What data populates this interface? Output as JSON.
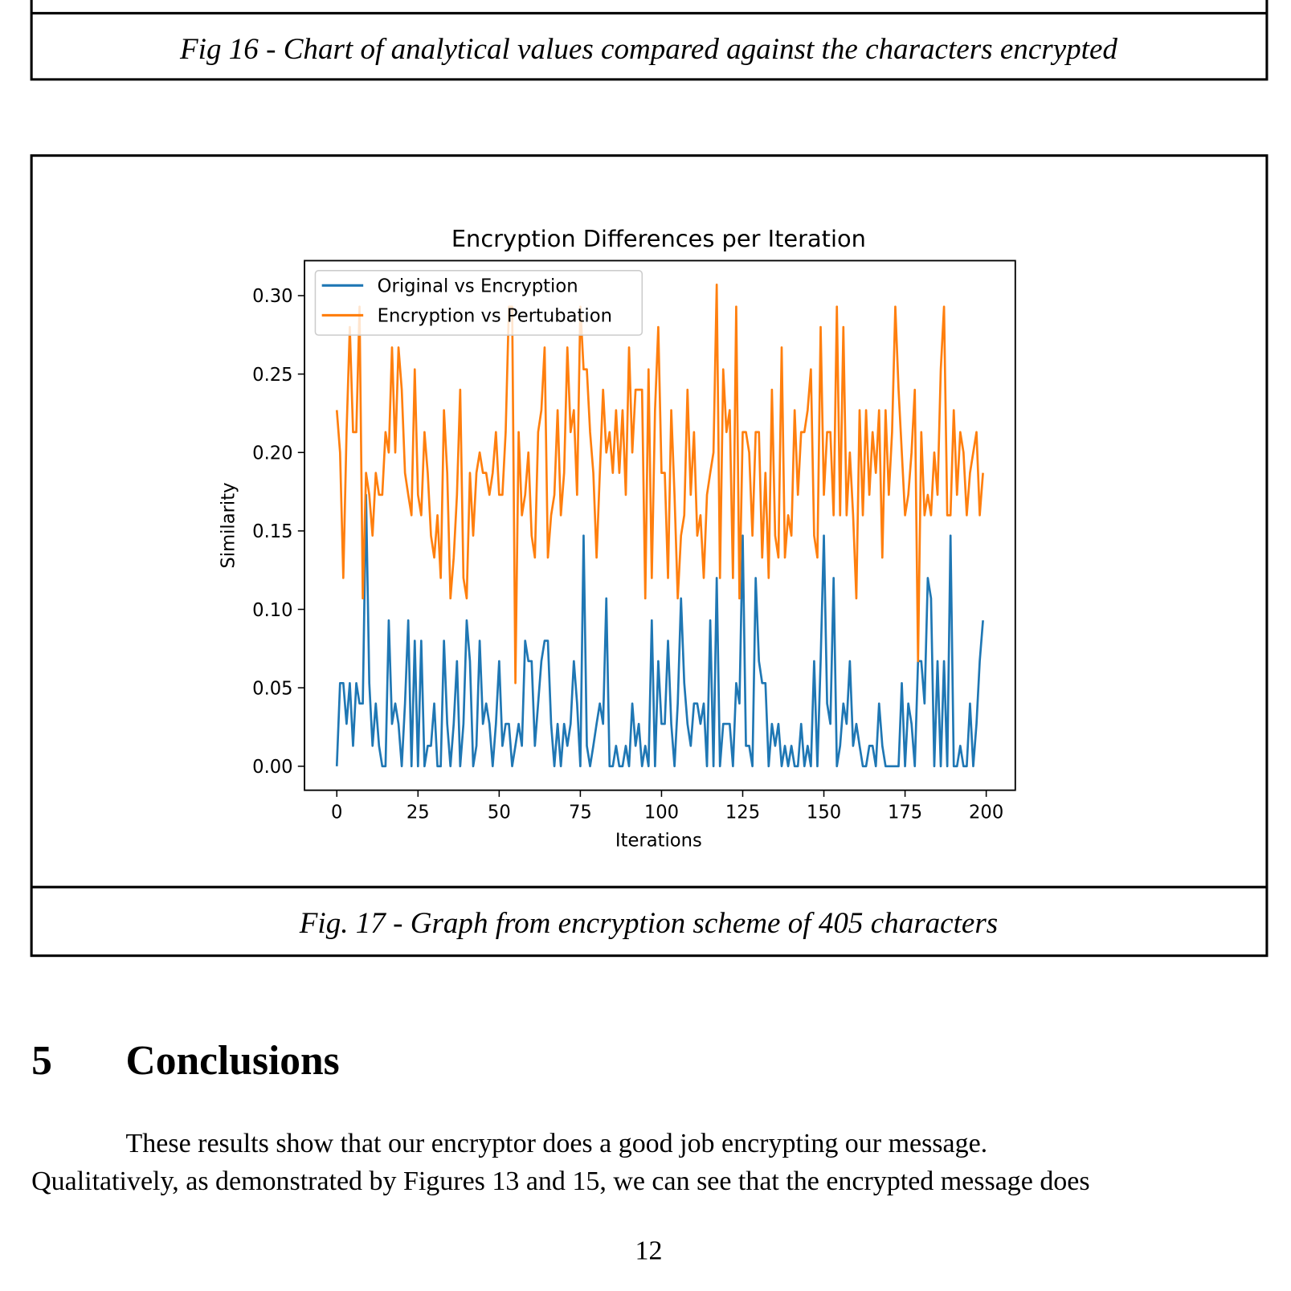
{
  "figure_16": {
    "caption": "Fig 16 - Chart of analytical values compared against the characters encrypted"
  },
  "figure_17": {
    "caption": "Fig. 17 - Graph from encryption scheme of 405 characters"
  },
  "chart_data": {
    "type": "line",
    "title": "Encryption Differences per Iteration",
    "xlabel": "Iterations",
    "ylabel": "Similarity",
    "legend": "upper left",
    "xlim": [
      -9.95,
      208.95
    ],
    "ylim": [
      -0.0153,
      0.3223
    ],
    "xticks": [
      0,
      25,
      50,
      75,
      100,
      125,
      150,
      175,
      200
    ],
    "yticks": [
      {
        "value": 0,
        "label": "0.00"
      },
      {
        "value": 0.05,
        "label": "0.05"
      },
      {
        "value": 0.1,
        "label": "0.10"
      },
      {
        "value": 0.15,
        "label": "0.15"
      },
      {
        "value": 0.2,
        "label": "0.20"
      },
      {
        "value": 0.25,
        "label": "0.25"
      },
      {
        "value": 0.3,
        "label": "0.30"
      }
    ],
    "x": [
      0,
      1,
      2,
      3,
      4,
      5,
      6,
      7,
      8,
      9,
      10,
      11,
      12,
      13,
      14,
      15,
      16,
      17,
      18,
      19,
      20,
      21,
      22,
      23,
      24,
      25,
      26,
      27,
      28,
      29,
      30,
      31,
      32,
      33,
      34,
      35,
      36,
      37,
      38,
      39,
      40,
      41,
      42,
      43,
      44,
      45,
      46,
      47,
      48,
      49,
      50,
      51,
      52,
      53,
      54,
      55,
      56,
      57,
      58,
      59,
      60,
      61,
      62,
      63,
      64,
      65,
      66,
      67,
      68,
      69,
      70,
      71,
      72,
      73,
      74,
      75,
      76,
      77,
      78,
      79,
      80,
      81,
      82,
      83,
      84,
      85,
      86,
      87,
      88,
      89,
      90,
      91,
      92,
      93,
      94,
      95,
      96,
      97,
      98,
      99,
      100,
      101,
      102,
      103,
      104,
      105,
      106,
      107,
      108,
      109,
      110,
      111,
      112,
      113,
      114,
      115,
      116,
      117,
      118,
      119,
      120,
      121,
      122,
      123,
      124,
      125,
      126,
      127,
      128,
      129,
      130,
      131,
      132,
      133,
      134,
      135,
      136,
      137,
      138,
      139,
      140,
      141,
      142,
      143,
      144,
      145,
      146,
      147,
      148,
      149,
      150,
      151,
      152,
      153,
      154,
      155,
      156,
      157,
      158,
      159,
      160,
      161,
      162,
      163,
      164,
      165,
      166,
      167,
      168,
      169,
      170,
      171,
      172,
      173,
      174,
      175,
      176,
      177,
      178,
      179,
      180,
      181,
      182,
      183,
      184,
      185,
      186,
      187,
      188,
      189,
      190,
      191,
      192,
      193,
      194,
      195,
      196,
      197,
      198,
      199
    ],
    "series": [
      {
        "name": "Original vs Encryption",
        "color": "#1f77b4",
        "values": [
          0,
          0.053,
          0.053,
          0.027,
          0.053,
          0.013,
          0.053,
          0.04,
          0.04,
          0.173,
          0.053,
          0.013,
          0.04,
          0.013,
          0,
          0,
          0.093,
          0.027,
          0.04,
          0.027,
          0,
          0.04,
          0.093,
          0,
          0.08,
          0,
          0.08,
          0,
          0.013,
          0.013,
          0.04,
          0,
          0,
          0.08,
          0.027,
          0,
          0.027,
          0.067,
          0,
          0.027,
          0.093,
          0.067,
          0,
          0.013,
          0.08,
          0.027,
          0.04,
          0.027,
          0,
          0.027,
          0.067,
          0.013,
          0.027,
          0.027,
          0,
          0.013,
          0.027,
          0.013,
          0.08,
          0.067,
          0.067,
          0.013,
          0.04,
          0.067,
          0.08,
          0.08,
          0.027,
          0,
          0.027,
          0,
          0.027,
          0.013,
          0.027,
          0.067,
          0.04,
          0,
          0.147,
          0.013,
          0,
          0.013,
          0.027,
          0.04,
          0.027,
          0.107,
          0,
          0,
          0.013,
          0,
          0,
          0.013,
          0,
          0.04,
          0.013,
          0.027,
          0,
          0.013,
          0,
          0.093,
          0,
          0.067,
          0.027,
          0.027,
          0.08,
          0.027,
          0,
          0.04,
          0.107,
          0.053,
          0.027,
          0.013,
          0.04,
          0.04,
          0.027,
          0.04,
          0,
          0.093,
          0,
          0.12,
          0,
          0.027,
          0.027,
          0.027,
          0,
          0.053,
          0.04,
          0.147,
          0.013,
          0.013,
          0,
          0.12,
          0.067,
          0.053,
          0.053,
          0,
          0.027,
          0.013,
          0.027,
          0,
          0.013,
          0,
          0.013,
          0,
          0,
          0.027,
          0,
          0.013,
          0,
          0.067,
          0,
          0.067,
          0.147,
          0.04,
          0.027,
          0.12,
          0,
          0.013,
          0.04,
          0.027,
          0.067,
          0.013,
          0.027,
          0.013,
          0,
          0,
          0.013,
          0.013,
          0,
          0.04,
          0.013,
          0,
          0,
          0,
          0,
          0,
          0.053,
          0,
          0.04,
          0.027,
          0,
          0.067,
          0.067,
          0.04,
          0.12,
          0.107,
          0,
          0.067,
          0,
          0.067,
          0,
          0.147,
          0,
          0,
          0.013,
          0,
          0,
          0.04,
          0,
          0.027,
          0.067,
          0.093
        ]
      },
      {
        "name": "Encryption vs Pertubation",
        "color": "#ff7f0e",
        "values": [
          0.227,
          0.2,
          0.12,
          0.213,
          0.28,
          0.213,
          0.213,
          0.293,
          0.107,
          0.187,
          0.173,
          0.147,
          0.187,
          0.173,
          0.173,
          0.213,
          0.2,
          0.267,
          0.2,
          0.267,
          0.24,
          0.187,
          0.173,
          0.16,
          0.253,
          0.173,
          0.16,
          0.213,
          0.187,
          0.147,
          0.133,
          0.16,
          0.12,
          0.227,
          0.187,
          0.107,
          0.133,
          0.173,
          0.24,
          0.12,
          0.107,
          0.187,
          0.147,
          0.187,
          0.2,
          0.187,
          0.187,
          0.173,
          0.187,
          0.213,
          0.173,
          0.173,
          0.213,
          0.293,
          0.293,
          0.053,
          0.213,
          0.16,
          0.173,
          0.2,
          0.147,
          0.133,
          0.213,
          0.227,
          0.267,
          0.133,
          0.16,
          0.173,
          0.227,
          0.16,
          0.187,
          0.267,
          0.213,
          0.227,
          0.173,
          0.293,
          0.253,
          0.253,
          0.213,
          0.187,
          0.133,
          0.187,
          0.24,
          0.2,
          0.213,
          0.187,
          0.227,
          0.187,
          0.227,
          0.173,
          0.267,
          0.2,
          0.24,
          0.24,
          0.24,
          0.107,
          0.253,
          0.12,
          0.227,
          0.28,
          0.187,
          0.187,
          0.12,
          0.227,
          0.173,
          0.107,
          0.147,
          0.16,
          0.24,
          0.173,
          0.213,
          0.147,
          0.16,
          0.12,
          0.173,
          0.187,
          0.2,
          0.307,
          0.12,
          0.253,
          0.213,
          0.227,
          0.12,
          0.293,
          0.107,
          0.213,
          0.213,
          0.2,
          0.147,
          0.213,
          0.213,
          0.133,
          0.187,
          0.12,
          0.24,
          0.147,
          0.133,
          0.267,
          0.133,
          0.16,
          0.147,
          0.227,
          0.173,
          0.213,
          0.213,
          0.227,
          0.253,
          0.147,
          0.133,
          0.28,
          0.173,
          0.213,
          0.213,
          0.16,
          0.293,
          0.16,
          0.28,
          0.16,
          0.2,
          0.16,
          0.107,
          0.227,
          0.16,
          0.227,
          0.173,
          0.213,
          0.187,
          0.227,
          0.133,
          0.227,
          0.173,
          0.213,
          0.293,
          0.24,
          0.2,
          0.16,
          0.173,
          0.2,
          0.24,
          0.067,
          0.213,
          0.16,
          0.173,
          0.16,
          0.2,
          0.173,
          0.253,
          0.293,
          0.16,
          0.16,
          0.227,
          0.173,
          0.213,
          0.2,
          0.16,
          0.187,
          0.2,
          0.213,
          0.16,
          0.187
        ]
      }
    ]
  },
  "section": {
    "number": "5",
    "title": "Conclusions"
  },
  "paragraph": {
    "lines": [
      "These results show that our encryptor does a good job encrypting our message.",
      "Qualitatively, as demonstrated by Figures 13 and 15, we can see that the encrypted message does"
    ]
  },
  "page_number": "12"
}
